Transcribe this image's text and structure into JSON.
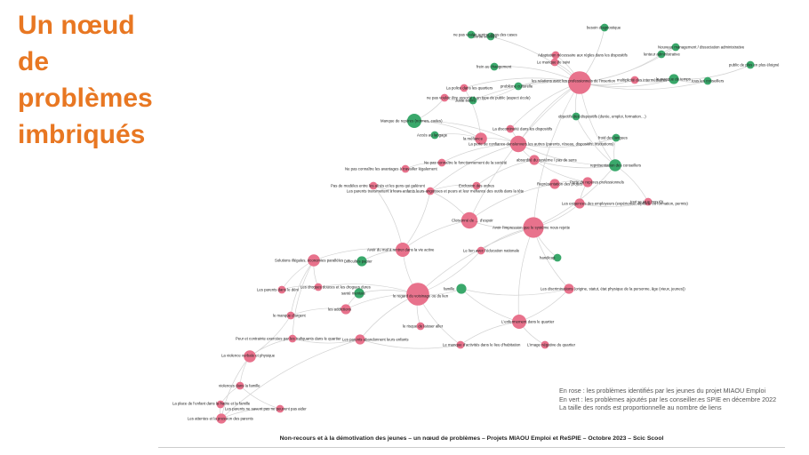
{
  "title": [
    "Un nœud",
    "de",
    "problèmes",
    "imbriqués"
  ],
  "legend": [
    "En rose : les problèmes identifiés par les jeunes du projet MIAOU Emploi",
    "En vert : les problèmes ajoutés par les conseiller.es SPIE en décembre 2022",
    "La taille des ronds est proportionnelle au nombre de liens"
  ],
  "footer": "Non-recours et à la démotivation des jeunes – un nœud de problèmes – Projets MIAOU Emploi et ReSPIE – Octobre 2023 – Scic Scool",
  "colors": {
    "title": "#e87722",
    "pink": "#e8728c",
    "green": "#3aa86b",
    "edge": "#d2d2d2"
  },
  "nodes": [
    {
      "id": "n1",
      "label": "ne pas vouloir rentrer dans des cases",
      "color": "green",
      "size": 2
    },
    {
      "id": "n2",
      "label": "Sortie scolaire",
      "color": "green",
      "size": 2
    },
    {
      "id": "n3",
      "label": "besoin diagnostique",
      "color": "green",
      "size": 2
    },
    {
      "id": "n4",
      "label": "Adaptation nécessaire aux règles dans les dispositifs",
      "color": "pink",
      "size": 2
    },
    {
      "id": "n5",
      "label": "Le manque de suivi",
      "color": "pink",
      "size": 2
    },
    {
      "id": "n6",
      "label": "Nouveau management / dissociation administrative",
      "color": "green",
      "size": 2
    },
    {
      "id": "n7",
      "label": "lenteur administrative",
      "color": "green",
      "size": 2
    },
    {
      "id": "n8",
      "label": "public de plus en plus éloigné",
      "color": "green",
      "size": 2
    },
    {
      "id": "n9",
      "label": "frein au changement",
      "color": "green",
      "size": 2
    },
    {
      "id": "n10",
      "label": "les relations avec les professionnels de l'insertion",
      "color": "pink",
      "size": 9
    },
    {
      "id": "n11",
      "label": "multiplicité des intermédiaires",
      "color": "pink",
      "size": 2
    },
    {
      "id": "n12",
      "label": "le manque de temps",
      "color": "green",
      "size": 3
    },
    {
      "id": "n13",
      "label": "tous les conseillers",
      "color": "green",
      "size": 2
    },
    {
      "id": "n14",
      "label": "La police dans les quartiers",
      "color": "pink",
      "size": 2
    },
    {
      "id": "n15",
      "label": "problème culturelle",
      "color": "green",
      "size": 2
    },
    {
      "id": "n16",
      "label": "ne pas vouloir être associé à un type de public (aspect école)",
      "color": "pink",
      "size": 2
    },
    {
      "id": "n17",
      "label": "Juste suivre",
      "color": "green",
      "size": 2
    },
    {
      "id": "n18",
      "label": "objectifs des dispositifs (durée, emploi, formation…)",
      "color": "green",
      "size": 2
    },
    {
      "id": "n19",
      "label": "Manque de repères (normes, codes)",
      "color": "green",
      "size": 5
    },
    {
      "id": "n20",
      "label": "La discontinuité dans les dispositifs",
      "color": "pink",
      "size": 2
    },
    {
      "id": "n21",
      "label": "Accès au langage",
      "color": "green",
      "size": 2
    },
    {
      "id": "n22",
      "label": "la méfiance",
      "color": "pink",
      "size": 4
    },
    {
      "id": "n23",
      "label": "La perte de confiance dans/envers les autres (parents, réseau, dispositifs, institutions)",
      "color": "pink",
      "size": 6
    },
    {
      "id": "n24",
      "label": "froid des langues",
      "color": "green",
      "size": 2
    },
    {
      "id": "n25",
      "label": "absurdité du système / pas de sens",
      "color": "pink",
      "size": 3
    },
    {
      "id": "n26",
      "label": "représentation des conseillers",
      "color": "green",
      "size": 4
    },
    {
      "id": "n27",
      "label": "Ne pas connaître le fonctionnement de la société",
      "color": "pink",
      "size": 2
    },
    {
      "id": "n28",
      "label": "Ne pas connaître les avantages à travailler légalement",
      "color": "pink",
      "size": 2
    },
    {
      "id": "n29",
      "label": "Pas de modèles entre les aînés et les gens qui galèrent",
      "color": "pink",
      "size": 2
    },
    {
      "id": "n30",
      "label": "Exclusion des ordres",
      "color": "pink",
      "size": 2
    },
    {
      "id": "n31",
      "label": "Perte de repères professionnels",
      "color": "pink",
      "size": 3
    },
    {
      "id": "n32",
      "label": "Représentation des projets",
      "color": "pink",
      "size": 3
    },
    {
      "id": "n33",
      "label": "Les parents transmettent à leurs enfants leurs angoisses et peurs et leur méfiance des outils dans la tête",
      "color": "pink",
      "size": 2
    },
    {
      "id": "n34",
      "label": "Les exigences des employeurs (expérience, diplôme ou formation, permis)",
      "color": "pink",
      "size": 3
    },
    {
      "id": "n35",
      "label": "tout se joue trop tôt",
      "color": "pink",
      "size": 2
    },
    {
      "id": "n36",
      "label": "Cloisonné de … d'espoir",
      "color": "pink",
      "size": 6
    },
    {
      "id": "n37",
      "label": "Avoir l'impression que le système nous rejette",
      "color": "pink",
      "size": 8
    },
    {
      "id": "n38",
      "label": "Avoir du mal à rentrer dans la vie active",
      "color": "pink",
      "size": 5
    },
    {
      "id": "n39",
      "label": "Le lien avec l'éducation nationale",
      "color": "pink",
      "size": 2
    },
    {
      "id": "n40",
      "label": "handicap",
      "color": "green",
      "size": 2
    },
    {
      "id": "n41",
      "label": "Solutions illégales, économies parallèles",
      "color": "pink",
      "size": 4
    },
    {
      "id": "n42",
      "label": "Difficultés papier",
      "color": "green",
      "size": 3
    },
    {
      "id": "n43",
      "label": "Les drogues douces et les drogues dures",
      "color": "pink",
      "size": 2
    },
    {
      "id": "n44",
      "label": "Les parents dans le déni",
      "color": "pink",
      "size": 2
    },
    {
      "id": "n45",
      "label": "santé mentale",
      "color": "green",
      "size": 3
    },
    {
      "id": "n46",
      "label": "le regard du voisinage ou du lien",
      "color": "pink",
      "size": 9
    },
    {
      "id": "n47",
      "label": "famille",
      "color": "green",
      "size": 3
    },
    {
      "id": "n48",
      "label": "Les discriminations (origine, statut, état physique de la personne, âge (vieux, jeunes))",
      "color": "pink",
      "size": 3
    },
    {
      "id": "n49",
      "label": "les addictions",
      "color": "pink",
      "size": 3
    },
    {
      "id": "n50",
      "label": "le manque d'argent",
      "color": "pink",
      "size": 2
    },
    {
      "id": "n51",
      "label": "L'enfermement dans le quartier",
      "color": "pink",
      "size": 5
    },
    {
      "id": "n52",
      "label": "le risque de laisser aller",
      "color": "pink",
      "size": 2
    },
    {
      "id": "n53",
      "label": "Peur et contrainte exercées par les trafiquants dans le quartier",
      "color": "pink",
      "size": 2
    },
    {
      "id": "n54",
      "label": "Les parents abandonnent leurs enfants",
      "color": "pink",
      "size": 3
    },
    {
      "id": "n55",
      "label": "Le manque d'activités dans le lieu d'habitation",
      "color": "pink",
      "size": 2
    },
    {
      "id": "n56",
      "label": "L'image négative du quartier",
      "color": "pink",
      "size": 2
    },
    {
      "id": "n57",
      "label": "La violence verbale et physique",
      "color": "pink",
      "size": 4
    },
    {
      "id": "n58",
      "label": "violences dans la famille",
      "color": "pink",
      "size": 2
    },
    {
      "id": "n59",
      "label": "La place de l'enfant dans la fratrie et la famille",
      "color": "pink",
      "size": 2
    },
    {
      "id": "n60",
      "label": "Les parents ne savent pas ne peuvent pas aider",
      "color": "pink",
      "size": 2
    },
    {
      "id": "n61",
      "label": "Les attentes et la pression des parents",
      "color": "pink",
      "size": 3
    }
  ],
  "edges": [
    [
      "n10",
      "n4"
    ],
    [
      "n10",
      "n5"
    ],
    [
      "n10",
      "n9"
    ],
    [
      "n10",
      "n11"
    ],
    [
      "n10",
      "n12"
    ],
    [
      "n10",
      "n13"
    ],
    [
      "n10",
      "n15"
    ],
    [
      "n10",
      "n18"
    ],
    [
      "n10",
      "n23"
    ],
    [
      "n10",
      "n3"
    ],
    [
      "n10",
      "n6"
    ],
    [
      "n10",
      "n7"
    ],
    [
      "n10",
      "n26"
    ],
    [
      "n10",
      "n20"
    ],
    [
      "n10",
      "n2"
    ],
    [
      "n10",
      "n17"
    ],
    [
      "n10",
      "n14"
    ],
    [
      "n10",
      "n37"
    ],
    [
      "n10",
      "n36"
    ],
    [
      "n12",
      "n8"
    ],
    [
      "n12",
      "n13"
    ],
    [
      "n6",
      "n7"
    ],
    [
      "n11",
      "n12"
    ],
    [
      "n1",
      "n2"
    ],
    [
      "n4",
      "n5"
    ],
    [
      "n23",
      "n22"
    ],
    [
      "n23",
      "n19"
    ],
    [
      "n23",
      "n25"
    ],
    [
      "n23",
      "n20"
    ],
    [
      "n23",
      "n24"
    ],
    [
      "n23",
      "n33"
    ],
    [
      "n23",
      "n27"
    ],
    [
      "n23",
      "n26"
    ],
    [
      "n22",
      "n19"
    ],
    [
      "n22",
      "n14"
    ],
    [
      "n22",
      "n21"
    ],
    [
      "n25",
      "n26"
    ],
    [
      "n25",
      "n30"
    ],
    [
      "n25",
      "n31"
    ],
    [
      "n27",
      "n28"
    ],
    [
      "n29",
      "n33"
    ],
    [
      "n30",
      "n33"
    ],
    [
      "n31",
      "n32"
    ],
    [
      "n31",
      "n34"
    ],
    [
      "n34",
      "n35"
    ],
    [
      "n32",
      "n36"
    ],
    [
      "n36",
      "n37"
    ],
    [
      "n36",
      "n33"
    ],
    [
      "n36",
      "n38"
    ],
    [
      "n37",
      "n34"
    ],
    [
      "n37",
      "n39"
    ],
    [
      "n37",
      "n40"
    ],
    [
      "n37",
      "n46"
    ],
    [
      "n37",
      "n48"
    ],
    [
      "n37",
      "n51"
    ],
    [
      "n37",
      "n26"
    ],
    [
      "n38",
      "n41"
    ],
    [
      "n38",
      "n42"
    ],
    [
      "n38",
      "n46"
    ],
    [
      "n38",
      "n33"
    ],
    [
      "n38",
      "n29"
    ],
    [
      "n46",
      "n45"
    ],
    [
      "n46",
      "n47"
    ],
    [
      "n46",
      "n49"
    ],
    [
      "n46",
      "n52"
    ],
    [
      "n46",
      "n54"
    ],
    [
      "n46",
      "n55"
    ],
    [
      "n46",
      "n43"
    ],
    [
      "n46",
      "n39"
    ],
    [
      "n41",
      "n43"
    ],
    [
      "n41",
      "n44"
    ],
    [
      "n41",
      "n50"
    ],
    [
      "n41",
      "n53"
    ],
    [
      "n43",
      "n44"
    ],
    [
      "n45",
      "n49"
    ],
    [
      "n49",
      "n50"
    ],
    [
      "n47",
      "n48"
    ],
    [
      "n47",
      "n51"
    ],
    [
      "n51",
      "n55"
    ],
    [
      "n51",
      "n56"
    ],
    [
      "n51",
      "n48"
    ],
    [
      "n53",
      "n54"
    ],
    [
      "n53",
      "n57"
    ],
    [
      "n54",
      "n55"
    ],
    [
      "n54",
      "n61"
    ],
    [
      "n57",
      "n58"
    ],
    [
      "n57",
      "n50"
    ],
    [
      "n57",
      "n61"
    ],
    [
      "n58",
      "n59"
    ],
    [
      "n58",
      "n60"
    ],
    [
      "n60",
      "n61"
    ],
    [
      "n59",
      "n61"
    ],
    [
      "n19",
      "n16"
    ],
    [
      "n16",
      "n17"
    ],
    [
      "n17",
      "n15"
    ],
    [
      "n35",
      "n26"
    ],
    [
      "n24",
      "n26"
    ],
    [
      "n18",
      "n26"
    ]
  ]
}
